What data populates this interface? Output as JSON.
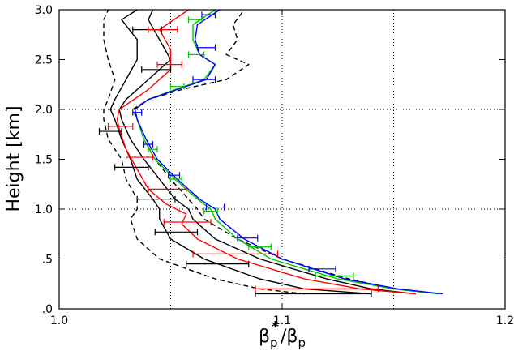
{
  "chart_data": {
    "type": "line",
    "xlabel": "β_p* / β_p",
    "xlabel_parts": {
      "beta1": "β",
      "sub1": "p",
      "star": "*",
      "slash": "/",
      "beta2": "β",
      "sub2": "p"
    },
    "ylabel": "Height [km]",
    "xlim": [
      1.0,
      1.2
    ],
    "ylim": [
      0.0,
      3.0
    ],
    "x_ticks": [
      {
        "value": 1.0,
        "label": "1.0"
      },
      {
        "value": 1.1,
        "label": "1.1"
      },
      {
        "value": 1.2,
        "label": "1.2"
      }
    ],
    "y_ticks": [
      {
        "value": 0.0,
        "label": ".0"
      },
      {
        "value": 0.5,
        "label": ".5"
      },
      {
        "value": 1.0,
        "label": "1.0"
      },
      {
        "value": 1.5,
        "label": "1.5"
      },
      {
        "value": 2.0,
        "label": "2.0"
      },
      {
        "value": 2.5,
        "label": "2.5"
      },
      {
        "value": 3.0,
        "label": "3.0"
      }
    ],
    "grid_x": [
      1.05,
      1.1,
      1.15
    ],
    "grid_y": [
      1.0,
      2.0
    ],
    "series": [
      {
        "color": "#000000",
        "dash": "6,4",
        "width": 1.4,
        "y": [
          0.15,
          0.2,
          0.3,
          0.5,
          0.7,
          0.9,
          1.0,
          1.1,
          1.3,
          1.5,
          1.7,
          1.9,
          2.0,
          2.1,
          2.3,
          2.5,
          2.7,
          2.9,
          3.0
        ],
        "x": [
          1.11,
          1.09,
          1.07,
          1.045,
          1.035,
          1.032,
          1.035,
          1.035,
          1.03,
          1.028,
          1.022,
          1.02,
          1.02,
          1.022,
          1.025,
          1.022,
          1.02,
          1.02,
          1.022
        ]
      },
      {
        "color": "#000000",
        "dash": "",
        "width": 1.4,
        "y": [
          0.15,
          0.2,
          0.3,
          0.5,
          0.7,
          0.9,
          1.0,
          1.1,
          1.3,
          1.5,
          1.7,
          1.9,
          2.0,
          2.1,
          2.3,
          2.5,
          2.7,
          2.9,
          3.0
        ],
        "x": [
          1.14,
          1.11,
          1.09,
          1.065,
          1.05,
          1.045,
          1.045,
          1.042,
          1.035,
          1.032,
          1.028,
          1.025,
          1.023,
          1.025,
          1.03,
          1.035,
          1.035,
          1.028,
          1.035
        ]
      },
      {
        "color": "#000000",
        "dash": "",
        "width": 1.4,
        "y": [
          0.15,
          0.2,
          0.3,
          0.5,
          0.7,
          0.9,
          1.0,
          1.1,
          1.3,
          1.5,
          1.7,
          1.9,
          2.0,
          2.1,
          2.3,
          2.5,
          2.7,
          2.9,
          3.0
        ],
        "x": [
          1.16,
          1.14,
          1.12,
          1.09,
          1.07,
          1.06,
          1.058,
          1.052,
          1.045,
          1.038,
          1.032,
          1.028,
          1.027,
          1.03,
          1.04,
          1.05,
          1.045,
          1.04,
          1.042
        ]
      },
      {
        "color": "#000000",
        "dash": "6,4",
        "width": 1.4,
        "y": [
          0.15,
          0.2,
          0.3,
          0.5,
          0.7,
          0.9,
          1.0,
          1.1,
          1.3,
          1.5,
          1.7,
          1.9,
          2.0,
          2.1,
          2.2,
          2.3,
          2.45,
          2.55,
          2.7,
          2.85,
          3.0
        ],
        "x": [
          1.17,
          1.15,
          1.13,
          1.1,
          1.08,
          1.065,
          1.062,
          1.058,
          1.05,
          1.043,
          1.038,
          1.035,
          1.033,
          1.04,
          1.055,
          1.075,
          1.085,
          1.075,
          1.08,
          1.078,
          1.083
        ]
      },
      {
        "color": "#ff0000",
        "dash": "",
        "width": 1.4,
        "y": [
          0.15,
          0.2,
          0.3,
          0.5,
          0.7,
          0.85,
          0.95,
          1.05,
          1.2,
          1.4,
          1.6,
          1.8,
          1.9,
          2.0,
          2.2,
          2.4,
          2.6,
          2.8,
          3.0
        ],
        "x": [
          1.16,
          1.135,
          1.11,
          1.08,
          1.062,
          1.055,
          1.057,
          1.048,
          1.04,
          1.035,
          1.03,
          1.027,
          1.026,
          1.027,
          1.04,
          1.05,
          1.05,
          1.045,
          1.058
        ]
      },
      {
        "color": "#00c800",
        "dash": "",
        "width": 1.4,
        "y": [
          0.15,
          0.2,
          0.3,
          0.5,
          0.7,
          0.9,
          1.0,
          1.1,
          1.3,
          1.5,
          1.7,
          1.9,
          2.0,
          2.1,
          2.2,
          2.3,
          2.45,
          2.55,
          2.7,
          2.85,
          3.0
        ],
        "x": [
          1.17,
          1.15,
          1.125,
          1.095,
          1.08,
          1.07,
          1.068,
          1.062,
          1.052,
          1.043,
          1.038,
          1.035,
          1.034,
          1.04,
          1.052,
          1.065,
          1.07,
          1.063,
          1.06,
          1.06,
          1.07
        ]
      },
      {
        "color": "#0000ff",
        "dash": "",
        "width": 1.4,
        "y": [
          0.15,
          0.2,
          0.3,
          0.5,
          0.7,
          0.9,
          1.0,
          1.1,
          1.3,
          1.5,
          1.7,
          1.9,
          2.0,
          2.1,
          2.2,
          2.3,
          2.45,
          2.55,
          2.7,
          2.85,
          3.0
        ],
        "x": [
          1.172,
          1.152,
          1.128,
          1.1,
          1.083,
          1.072,
          1.07,
          1.063,
          1.053,
          1.044,
          1.039,
          1.035,
          1.034,
          1.04,
          1.053,
          1.066,
          1.07,
          1.063,
          1.061,
          1.062,
          1.072
        ]
      }
    ],
    "error_bars": [
      {
        "color": "#000000",
        "items": [
          {
            "y": 0.15,
            "x1": 1.088,
            "x2": 1.14
          },
          {
            "y": 0.45,
            "x1": 1.057,
            "x2": 1.085
          },
          {
            "y": 0.77,
            "x1": 1.043,
            "x2": 1.062
          },
          {
            "y": 1.1,
            "x1": 1.035,
            "x2": 1.052
          },
          {
            "y": 1.42,
            "x1": 1.025,
            "x2": 1.04
          },
          {
            "y": 1.78,
            "x1": 1.018,
            "x2": 1.028
          },
          {
            "y": 2.4,
            "x1": 1.037,
            "x2": 1.05
          },
          {
            "y": 2.8,
            "x1": 1.033,
            "x2": 1.046
          }
        ]
      },
      {
        "color": "#ff0000",
        "items": [
          {
            "y": 0.2,
            "x1": 1.088,
            "x2": 1.143
          },
          {
            "y": 0.55,
            "x1": 1.06,
            "x2": 1.098
          },
          {
            "y": 0.87,
            "x1": 1.047,
            "x2": 1.068
          },
          {
            "y": 1.2,
            "x1": 1.04,
            "x2": 1.057
          },
          {
            "y": 1.52,
            "x1": 1.03,
            "x2": 1.042
          },
          {
            "y": 1.83,
            "x1": 1.022,
            "x2": 1.033
          },
          {
            "y": 2.45,
            "x1": 1.044,
            "x2": 1.055
          },
          {
            "y": 2.8,
            "x1": 1.04,
            "x2": 1.053
          }
        ]
      },
      {
        "color": "#00c800",
        "items": [
          {
            "y": 0.33,
            "x1": 1.115,
            "x2": 1.132
          },
          {
            "y": 0.62,
            "x1": 1.085,
            "x2": 1.095
          },
          {
            "y": 0.98,
            "x1": 1.065,
            "x2": 1.071
          },
          {
            "y": 1.3,
            "x1": 1.05,
            "x2": 1.055
          },
          {
            "y": 1.6,
            "x1": 1.04,
            "x2": 1.044
          },
          {
            "y": 2.23,
            "x1": 1.05,
            "x2": 1.056
          },
          {
            "y": 2.55,
            "x1": 1.058,
            "x2": 1.065
          },
          {
            "y": 2.9,
            "x1": 1.058,
            "x2": 1.064
          }
        ]
      },
      {
        "color": "#0000ff",
        "items": [
          {
            "y": 0.4,
            "x1": 1.112,
            "x2": 1.124
          },
          {
            "y": 0.71,
            "x1": 1.08,
            "x2": 1.089
          },
          {
            "y": 1.02,
            "x1": 1.066,
            "x2": 1.074
          },
          {
            "y": 1.34,
            "x1": 1.049,
            "x2": 1.054
          },
          {
            "y": 1.65,
            "x1": 1.038,
            "x2": 1.042
          },
          {
            "y": 1.97,
            "x1": 1.033,
            "x2": 1.037
          },
          {
            "y": 2.3,
            "x1": 1.06,
            "x2": 1.07
          },
          {
            "y": 2.62,
            "x1": 1.062,
            "x2": 1.07
          },
          {
            "y": 2.95,
            "x1": 1.064,
            "x2": 1.07
          }
        ]
      }
    ]
  }
}
